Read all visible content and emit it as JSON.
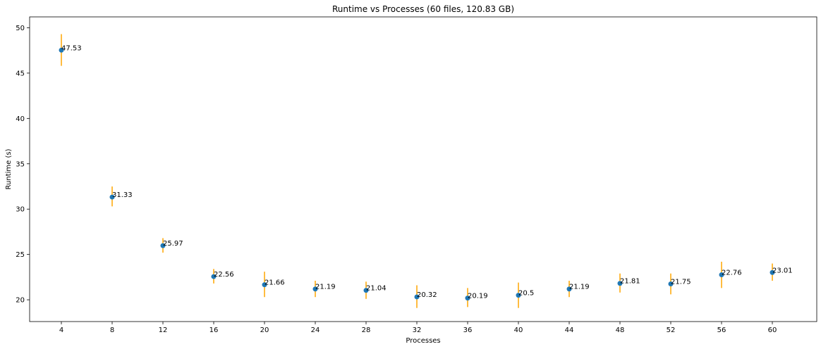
{
  "chart_data": {
    "type": "scatter",
    "title": "Runtime vs Processes (60 files, 120.83 GB)",
    "xlabel": "Processes",
    "ylabel": "Runtime (s)",
    "x_ticks": [
      4,
      8,
      12,
      16,
      20,
      24,
      28,
      32,
      36,
      40,
      44,
      48,
      52,
      56,
      60
    ],
    "y_ticks": [
      20,
      25,
      30,
      35,
      40,
      45,
      50
    ],
    "xlim": [
      1.5,
      63.5
    ],
    "ylim": [
      17.6,
      51.2
    ],
    "grid": false,
    "marker_color": "#1f77b4",
    "errorbar_color": "#ffa500",
    "points": [
      {
        "x": 4,
        "y": 47.53,
        "label": "47.53",
        "y_low": 45.8,
        "y_high": 49.3
      },
      {
        "x": 8,
        "y": 31.33,
        "label": "31.33",
        "y_low": 30.3,
        "y_high": 32.5
      },
      {
        "x": 12,
        "y": 25.97,
        "label": "25.97",
        "y_low": 25.2,
        "y_high": 26.8
      },
      {
        "x": 16,
        "y": 22.56,
        "label": "22.56",
        "y_low": 21.8,
        "y_high": 23.4
      },
      {
        "x": 20,
        "y": 21.66,
        "label": "21.66",
        "y_low": 20.3,
        "y_high": 23.1
      },
      {
        "x": 24,
        "y": 21.19,
        "label": "21.19",
        "y_low": 20.3,
        "y_high": 22.1
      },
      {
        "x": 28,
        "y": 21.04,
        "label": "21.04",
        "y_low": 20.1,
        "y_high": 22.0
      },
      {
        "x": 32,
        "y": 20.32,
        "label": "20.32",
        "y_low": 19.1,
        "y_high": 21.6
      },
      {
        "x": 36,
        "y": 20.19,
        "label": "20.19",
        "y_low": 19.2,
        "y_high": 21.3
      },
      {
        "x": 40,
        "y": 20.5,
        "label": "20.5",
        "y_low": 19.1,
        "y_high": 21.9
      },
      {
        "x": 44,
        "y": 21.19,
        "label": "21.19",
        "y_low": 20.3,
        "y_high": 22.1
      },
      {
        "x": 48,
        "y": 21.81,
        "label": "21.81",
        "y_low": 20.8,
        "y_high": 22.9
      },
      {
        "x": 52,
        "y": 21.75,
        "label": "21.75",
        "y_low": 20.6,
        "y_high": 22.9
      },
      {
        "x": 56,
        "y": 22.76,
        "label": "22.76",
        "y_low": 21.3,
        "y_high": 24.2
      },
      {
        "x": 60,
        "y": 23.01,
        "label": "23.01",
        "y_low": 22.1,
        "y_high": 24.0
      }
    ]
  }
}
